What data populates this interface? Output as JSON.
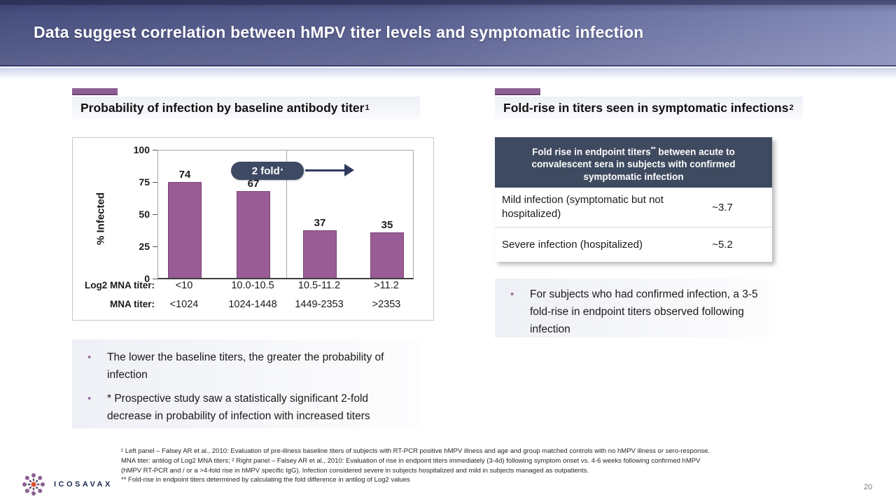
{
  "slide": {
    "title": "Data suggest correlation between hMPV titer levels and symptomatic infection",
    "page_number": "20",
    "logo_text": "ICOSAVAX"
  },
  "left_panel": {
    "heading": "Probability of infection by baseline antibody titer",
    "heading_sup": "1",
    "bullets": [
      "The lower the baseline titers, the greater the probability of infection",
      "* Prospective study saw a statistically significant 2-fold decrease in probability of infection with increased titers"
    ]
  },
  "chart_data": {
    "type": "bar",
    "title": "",
    "xlabel": "",
    "ylabel": "% Infected",
    "ylim": [
      0,
      100
    ],
    "yticks": [
      "100",
      "75",
      "50",
      "25",
      "0"
    ],
    "values": [
      74,
      67,
      37,
      35
    ],
    "bar_labels": [
      "74",
      "67",
      "37",
      "35"
    ],
    "x_row_labels": [
      "Log2 MNA titer:",
      "MNA titer:"
    ],
    "categories_log2": [
      "<10",
      "10.0-10.5",
      "10.5-11.2",
      ">11.2"
    ],
    "categories_mna": [
      "<1024",
      "1024-1448",
      "1449-2353",
      ">2353"
    ],
    "bar_color": "#9a5c95",
    "annotation": {
      "pill_text": "2 fold",
      "pill_sup": "*"
    },
    "legend": "none",
    "grid": "off"
  },
  "right_panel": {
    "heading": "Fold-rise in titers seen in symptomatic infections",
    "heading_sup": "2",
    "table": {
      "header_pre": "Fold rise in endpoint titers",
      "header_sup": "**",
      "header_post": " between acute to convalescent sera in subjects with confirmed symptomatic infection",
      "rows": [
        {
          "label": "Mild infection (symptomatic but not hospitalized)",
          "value": "~3.7"
        },
        {
          "label": "Severe infection (hospitalized)",
          "value": "~5.2"
        }
      ]
    },
    "bullets": [
      "For subjects who had confirmed infection, a 3-5 fold-rise in endpoint titers observed following infection"
    ]
  },
  "footnotes": [
    "¹ Left panel – Falsey AR et al., 2010: Evaluation of pre-illness baseline titers of subjects with RT-PCR positive hMPV illness and age and group matched controls with no hMPV illness or sero-response.",
    "MNA titer: antilog of Log2 MNA titers; ² Right panel – Falsey AR et al., 2010: Evaluation of rise in endpoint titers immediately (3-4d) following symptom onset vs. 4-6 weeks following confirmed hMPV",
    "(hMPV RT-PCR and / or a >4-fold rise in hMPV specific IgG). Infection considered severe in subjects hospitalized and mild in subjects managed as outpatients.",
    "** Fold-rise in endpoint titers determined by calculating the fold difference in antilog of Log2 values"
  ],
  "colors": {
    "bar_purple": "#9a5c95",
    "accent_purple": "#8d5f94",
    "dark_slate": "#3e4a5f",
    "header_gradient_start": "#474e7e",
    "header_gradient_end": "#868dba",
    "arrow_navy": "#2e3b5f"
  }
}
